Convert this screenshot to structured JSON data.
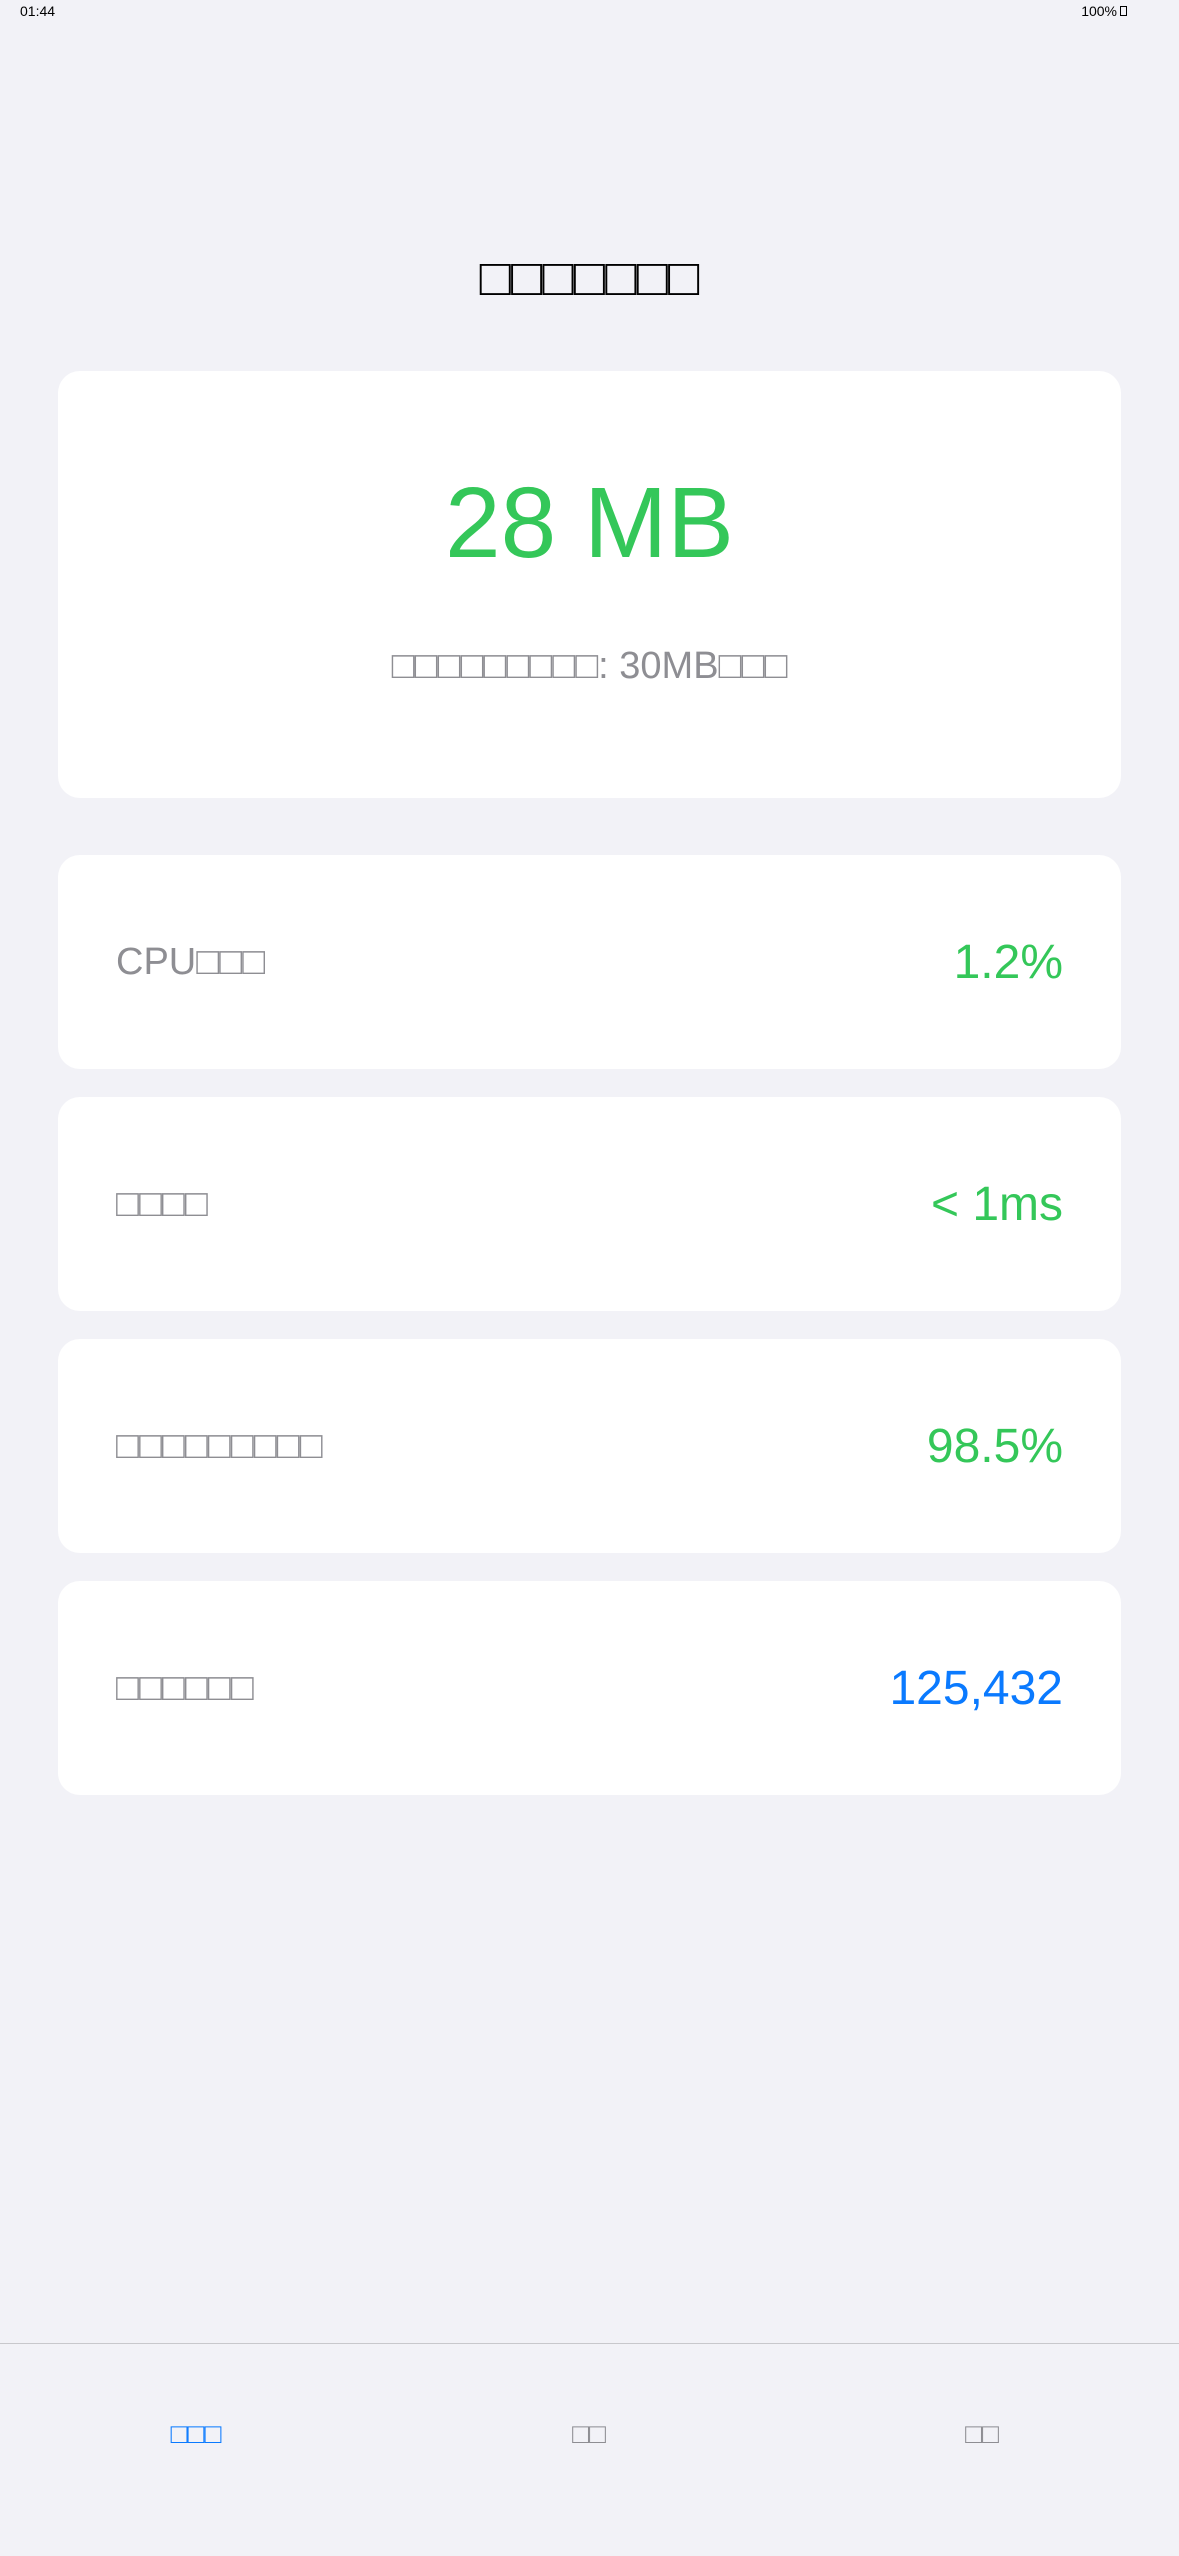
{
  "status_bar": {
    "time": "01:44",
    "battery": "100%"
  },
  "page": {
    "title": "□□□□□□□"
  },
  "hero": {
    "value": "28 MB",
    "subtitle": "□□□□□□□□□: 30MB□□□"
  },
  "metrics": [
    {
      "label": "CPU□□□",
      "value": "1.2%"
    },
    {
      "label": "□□□□",
      "value": "< 1ms"
    },
    {
      "label": "□□□□□□□□□",
      "value": "98.5%"
    },
    {
      "label": "□□□□□□",
      "value": "125,432"
    }
  ],
  "tabs": [
    {
      "label": "□□□"
    },
    {
      "label": "□□"
    },
    {
      "label": "□□"
    }
  ],
  "colors": {
    "good": "#34c759",
    "accent": "#0a7aff",
    "muted": "#8e8e93",
    "background": "#f2f2f7"
  }
}
